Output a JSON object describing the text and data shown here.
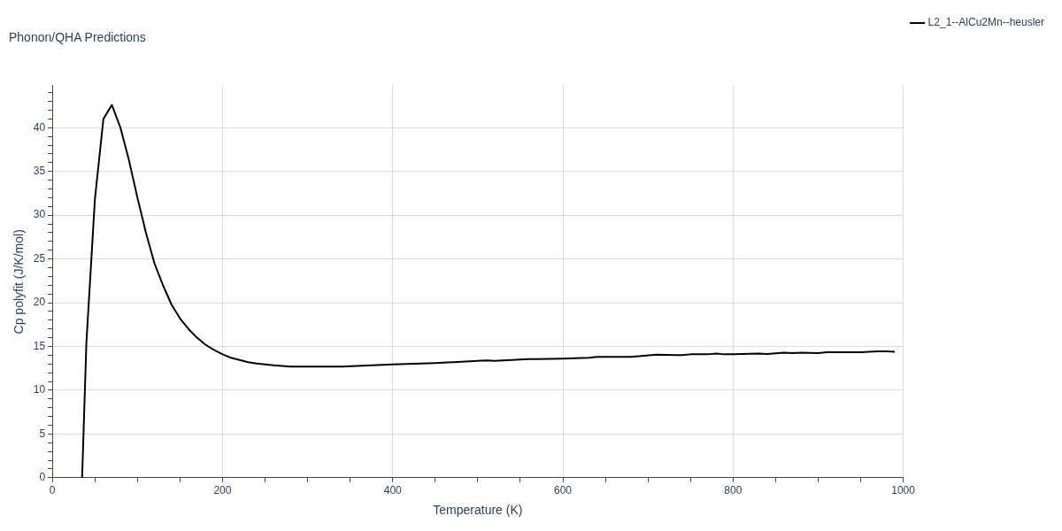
{
  "chart_data": {
    "type": "line",
    "title": "Phonon/QHA Predictions",
    "xlabel": "Temperature (K)",
    "ylabel": "Cp polyfit (J/K/mol)",
    "xlim": [
      0,
      1000
    ],
    "ylim": [
      0,
      44.8
    ],
    "xticks": [
      0,
      {
        "value": 50,
        "label": null
      },
      {
        "value": 100,
        "label": null
      },
      {
        "value": 150,
        "label": null
      },
      200,
      {
        "value": 250,
        "label": null
      },
      {
        "value": 300,
        "label": null
      },
      {
        "value": 350,
        "label": null
      },
      400,
      {
        "value": 450,
        "label": null
      },
      {
        "value": 500,
        "label": null
      },
      {
        "value": 550,
        "label": null
      },
      600,
      {
        "value": 650,
        "label": null
      },
      {
        "value": 700,
        "label": null
      },
      {
        "value": 750,
        "label": null
      },
      800,
      {
        "value": 850,
        "label": null
      },
      {
        "value": 900,
        "label": null
      },
      {
        "value": 950,
        "label": null
      },
      1000
    ],
    "yticks": [
      0,
      {
        "value": 1,
        "label": null
      },
      {
        "value": 2,
        "label": null
      },
      {
        "value": 3,
        "label": null
      },
      {
        "value": 4,
        "label": null
      },
      5,
      {
        "value": 6,
        "label": null
      },
      {
        "value": 7,
        "label": null
      },
      {
        "value": 8,
        "label": null
      },
      {
        "value": 9,
        "label": null
      },
      10,
      {
        "value": 11,
        "label": null
      },
      {
        "value": 12,
        "label": null
      },
      {
        "value": 13,
        "label": null
      },
      {
        "value": 14,
        "label": null
      },
      15,
      {
        "value": 16,
        "label": null
      },
      {
        "value": 17,
        "label": null
      },
      {
        "value": 18,
        "label": null
      },
      {
        "value": 19,
        "label": null
      },
      20,
      {
        "value": 21,
        "label": null
      },
      {
        "value": 22,
        "label": null
      },
      {
        "value": 23,
        "label": null
      },
      {
        "value": 24,
        "label": null
      },
      25,
      {
        "value": 26,
        "label": null
      },
      {
        "value": 27,
        "label": null
      },
      {
        "value": 28,
        "label": null
      },
      {
        "value": 29,
        "label": null
      },
      30,
      {
        "value": 31,
        "label": null
      },
      {
        "value": 32,
        "label": null
      },
      {
        "value": 33,
        "label": null
      },
      {
        "value": 34,
        "label": null
      },
      35,
      {
        "value": 36,
        "label": null
      },
      {
        "value": 37,
        "label": null
      },
      {
        "value": 38,
        "label": null
      },
      {
        "value": 39,
        "label": null
      },
      40,
      {
        "value": 41,
        "label": null
      },
      {
        "value": 42,
        "label": null
      },
      {
        "value": 43,
        "label": null
      },
      {
        "value": 44,
        "label": null
      }
    ],
    "grid": true,
    "legend": "top right",
    "marker": "none",
    "line_style": "solid",
    "series": [
      {
        "name": "L2_1--AlCu2Mn--heusler",
        "color": "#000000",
        "x": [
          35,
          40,
          50,
          60,
          70,
          80,
          90,
          100,
          110,
          120,
          130,
          140,
          150,
          160,
          170,
          180,
          190,
          200,
          210,
          220,
          230,
          240,
          260,
          280,
          300,
          340,
          400,
          450,
          500,
          510,
          520,
          560,
          570,
          600,
          630,
          640,
          680,
          710,
          740,
          750,
          770,
          780,
          790,
          800,
          830,
          840,
          860,
          870,
          880,
          900,
          910,
          950,
          970,
          980,
          990
        ],
        "values": [
          0,
          15.4,
          31.8,
          41.0,
          42.6,
          40.0,
          36.3,
          32.0,
          28.0,
          24.5,
          22.0,
          19.8,
          18.2,
          17.0,
          16.0,
          15.2,
          14.6,
          14.1,
          13.7,
          13.45,
          13.2,
          13.05,
          12.85,
          12.7,
          12.7,
          12.7,
          12.95,
          13.1,
          13.35,
          13.4,
          13.35,
          13.55,
          13.55,
          13.6,
          13.7,
          13.8,
          13.8,
          14.05,
          14.0,
          14.1,
          14.1,
          14.2,
          14.1,
          14.1,
          14.2,
          14.15,
          14.3,
          14.25,
          14.3,
          14.25,
          14.35,
          14.35,
          14.45,
          14.45,
          14.4
        ]
      }
    ]
  }
}
